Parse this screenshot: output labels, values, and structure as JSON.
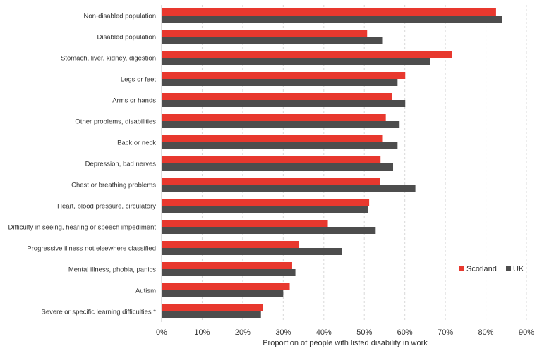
{
  "chart_data": {
    "type": "bar",
    "orientation": "horizontal",
    "categories": [
      "Non-disabled population",
      "Disabled population",
      "Stomach, liver, kidney, digestion",
      "Legs or feet",
      "Arms or hands",
      "Other problems, disabilities",
      "Back or neck",
      "Depression, bad nerves",
      "Chest or breathing problems",
      "Heart, blood pressure, circulatory",
      "Difficulty in seeing, hearing or speech impediment",
      "Progressive illness not elsewhere classified",
      "Mental illness, phobia, panics",
      "Autism",
      "Severe or specific learning difficulties *"
    ],
    "series": [
      {
        "name": "Scotland",
        "color": "#e8382e",
        "values": [
          82.5,
          50.7,
          71.7,
          60.1,
          56.8,
          55.3,
          54.4,
          54.0,
          53.8,
          51.2,
          41.0,
          33.8,
          32.2,
          31.6,
          25.0
        ]
      },
      {
        "name": "UK",
        "color": "#4d4d4d",
        "values": [
          84.0,
          54.4,
          66.3,
          58.2,
          60.1,
          58.7,
          58.2,
          57.1,
          62.6,
          51.0,
          52.8,
          44.5,
          33.0,
          30.0,
          24.5
        ]
      }
    ],
    "xlabel": "Proportion of people with listed disability in work",
    "ylabel": "",
    "xlim": [
      0,
      90
    ],
    "xticks": [
      "0%",
      "10%",
      "20%",
      "30%",
      "40%",
      "50%",
      "60%",
      "70%",
      "80%",
      "90%"
    ],
    "grid": "vertical dashed",
    "legend": "right"
  }
}
